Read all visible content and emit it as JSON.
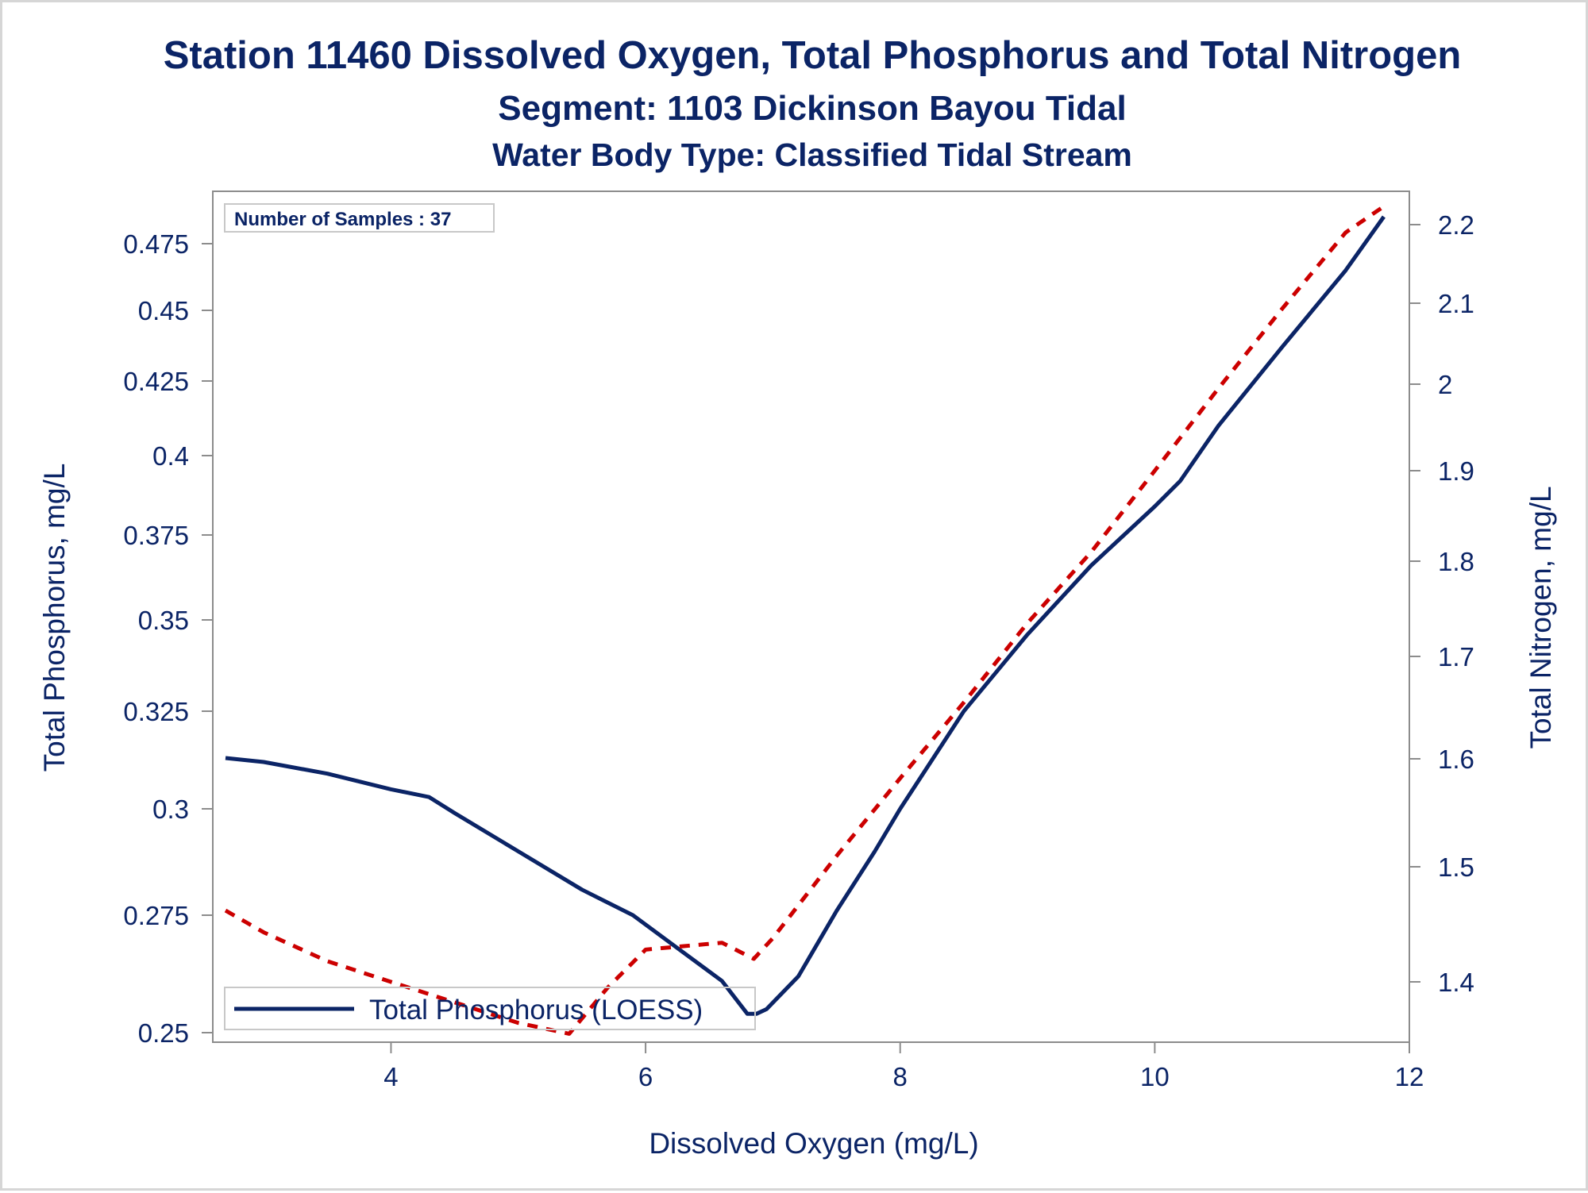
{
  "title": "Station 11460  Dissolved Oxygen, Total Phosphorus and Total Nitrogen",
  "subtitle": "Segment: 1103  Dickinson Bayou Tidal",
  "subtitle2": "Water Body Type: Classified Tidal Stream",
  "samples_label": "Number of Samples : 37",
  "legend": {
    "label": "Total Phosphorus (LOESS)",
    "placement": "bottom-left inside plot"
  },
  "colors": {
    "text": "#0b2466",
    "phosphorus_line": "#0b2466",
    "nitrogen_line": "#cc0000",
    "axis": "#8c8c8c",
    "frame": "#d6d6d6"
  },
  "chart_data": {
    "type": "line",
    "xlabel": "Dissolved Oxygen (mg/L)",
    "ylabel": "Total Phosphorus, mg/L",
    "y2label": "Total Nitrogen, mg/L",
    "xlim": [
      2.6,
      12
    ],
    "ylim": [
      0.249,
      0.486
    ],
    "y2lim": [
      1.35,
      2.233
    ],
    "y_scale": "nonlinear (compressed toward top, as drawn)",
    "y2_scale": "nonlinear (compressed toward top, as drawn)",
    "grid": false,
    "x_ticks": [
      "4",
      "6",
      "8",
      "10",
      "12"
    ],
    "y_ticks": [
      "0.25",
      "0.275",
      "0.3",
      "0.325",
      "0.35",
      "0.375",
      "0.4",
      "0.425",
      "0.45",
      "0.475"
    ],
    "y2_ticks": [
      "1.4",
      "1.5",
      "1.6",
      "1.7",
      "1.8",
      "1.9",
      "2",
      "2.1",
      "2.2"
    ],
    "series": [
      {
        "name": "Total Phosphorus (LOESS)",
        "axis": "left",
        "style": "solid",
        "x": [
          2.7,
          3.0,
          3.5,
          4.0,
          4.3,
          4.5,
          5.0,
          5.5,
          5.9,
          6.2,
          6.6,
          6.8,
          6.87,
          6.95,
          7.2,
          7.5,
          7.8,
          8.0,
          8.5,
          9.0,
          9.5,
          10.0,
          10.2,
          10.5,
          11.0,
          11.5,
          11.8
        ],
        "y": [
          0.313,
          0.312,
          0.309,
          0.305,
          0.303,
          0.299,
          0.29,
          0.281,
          0.275,
          0.269,
          0.261,
          0.254,
          0.254,
          0.255,
          0.262,
          0.276,
          0.29,
          0.3,
          0.325,
          0.346,
          0.366,
          0.384,
          0.392,
          0.41,
          0.437,
          0.465,
          0.486
        ]
      },
      {
        "name": "",
        "axis": "right",
        "style": "dashed",
        "x": [
          2.7,
          3.0,
          3.5,
          4.0,
          4.5,
          5.0,
          5.4,
          5.7,
          6.0,
          6.3,
          6.6,
          6.85,
          7.0,
          7.5,
          8.0,
          8.5,
          9.0,
          9.5,
          10.0,
          10.5,
          11.0,
          11.5,
          11.8
        ],
        "y": [
          1.462,
          1.443,
          1.418,
          1.4,
          1.383,
          1.366,
          1.357,
          1.395,
          1.428,
          1.431,
          1.434,
          1.42,
          1.438,
          1.51,
          1.582,
          1.655,
          1.735,
          1.81,
          1.9,
          1.995,
          2.093,
          2.19,
          2.233
        ]
      }
    ]
  }
}
